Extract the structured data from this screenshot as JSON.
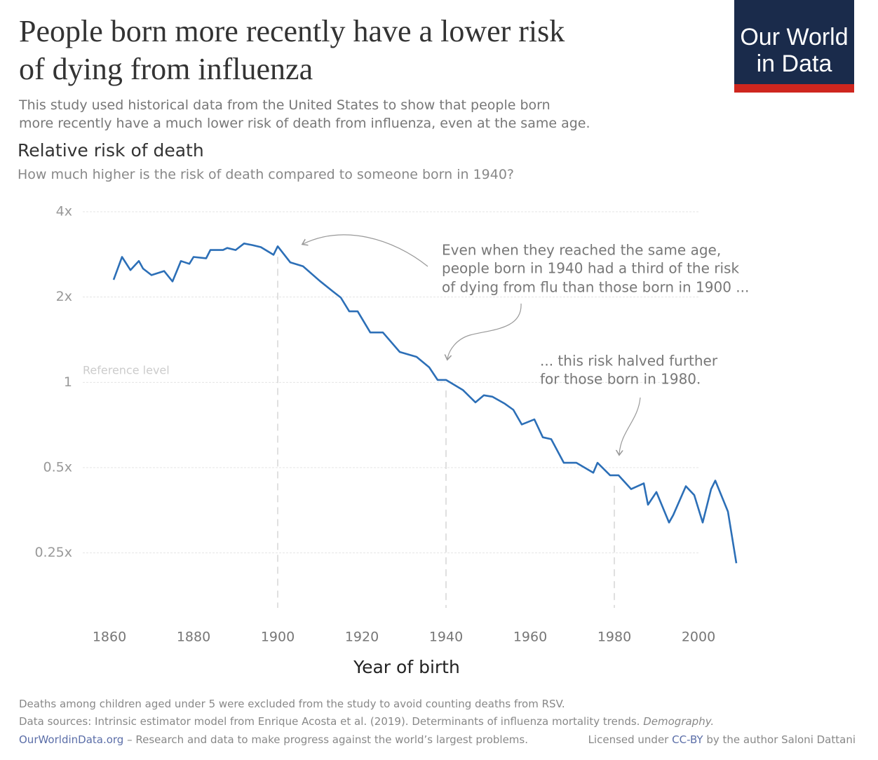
{
  "chart_data": {
    "type": "line",
    "title_lines": [
      "People born more recently have a lower risk",
      "of dying from influenza"
    ],
    "subtitle_lines": [
      "This study used historical data from the United States to show that people born",
      "more recently have a much lower risk of death from influenza, even at the same age."
    ],
    "y_axis_title": "Relative risk of death",
    "y_axis_subtitle": "How much higher is the risk of death compared to someone born in 1940?",
    "x_axis_title": "Year of birth",
    "logo_lines": [
      "Our World",
      "in Data"
    ],
    "reference_label": "Reference level",
    "annotations": [
      {
        "lines": [
          "Even when they reached the same age,",
          "people born in 1940 had a third of the risk",
          "of dying from flu than those born in 1900 ..."
        ]
      },
      {
        "lines": [
          "... this risk halved further",
          "for those born in 1980."
        ]
      }
    ],
    "reference_lines": [
      1900,
      1940,
      1980
    ],
    "log_scale": true,
    "grid": true,
    "xlim": [
      1854,
      2010
    ],
    "xticks": [
      1860,
      1880,
      1900,
      1920,
      1940,
      1960,
      1980,
      2000
    ],
    "ylim": [
      0.16,
      4
    ],
    "yticks": [
      {
        "value": 4,
        "label": "4x"
      },
      {
        "value": 2,
        "label": "2x"
      },
      1,
      {
        "value": 0.5,
        "label": "0.5x"
      },
      {
        "value": 0.25,
        "label": "0.25x"
      }
    ],
    "x": [
      1861,
      1863,
      1865,
      1867,
      1868,
      1870,
      1873,
      1875,
      1877,
      1879,
      1880,
      1883,
      1884,
      1887,
      1888,
      1890,
      1892,
      1894,
      1896,
      1899,
      1900,
      1903,
      1906,
      1910,
      1913,
      1915,
      1917,
      1919,
      1922,
      1925,
      1929,
      1933,
      1936,
      1938,
      1940,
      1944,
      1947,
      1949,
      1951,
      1954,
      1956,
      1958,
      1961,
      1963,
      1965,
      1968,
      1971,
      1975,
      1976,
      1979,
      1981,
      1984,
      1987,
      1988,
      1990,
      1993,
      1994,
      1997,
      1999,
      2001,
      2003,
      2004,
      2007,
      2009
    ],
    "series": [
      {
        "name": "Relative risk of death",
        "color": "#2c6fb7",
        "values": [
          2.3,
          2.77,
          2.49,
          2.68,
          2.52,
          2.39,
          2.47,
          2.27,
          2.68,
          2.62,
          2.77,
          2.74,
          2.93,
          2.93,
          2.98,
          2.93,
          3.09,
          3.05,
          3.0,
          2.82,
          3.02,
          2.65,
          2.57,
          2.28,
          2.1,
          1.99,
          1.78,
          1.78,
          1.5,
          1.5,
          1.28,
          1.23,
          1.13,
          1.02,
          1.02,
          0.94,
          0.85,
          0.9,
          0.89,
          0.84,
          0.8,
          0.71,
          0.74,
          0.64,
          0.63,
          0.52,
          0.52,
          0.48,
          0.52,
          0.47,
          0.47,
          0.42,
          0.44,
          0.37,
          0.41,
          0.32,
          0.34,
          0.43,
          0.4,
          0.32,
          0.42,
          0.45,
          0.35,
          0.23
        ]
      }
    ],
    "footnote": "Deaths among children aged under 5 were excluded from the study to avoid counting deaths from RSV.",
    "sources": "Data sources: Intrinsic estimator model from Enrique Acosta et al. (2019). Determinants of influenza mortality trends.",
    "sources_journal": "Demography.",
    "footer_link": "OurWorldinData.org",
    "footer_text": "– Research and data to make progress against the world’s largest problems.",
    "license_prefix": "Licensed under",
    "license_link": "CC-BY",
    "license_suffix": "by the author Saloni Dattani"
  }
}
